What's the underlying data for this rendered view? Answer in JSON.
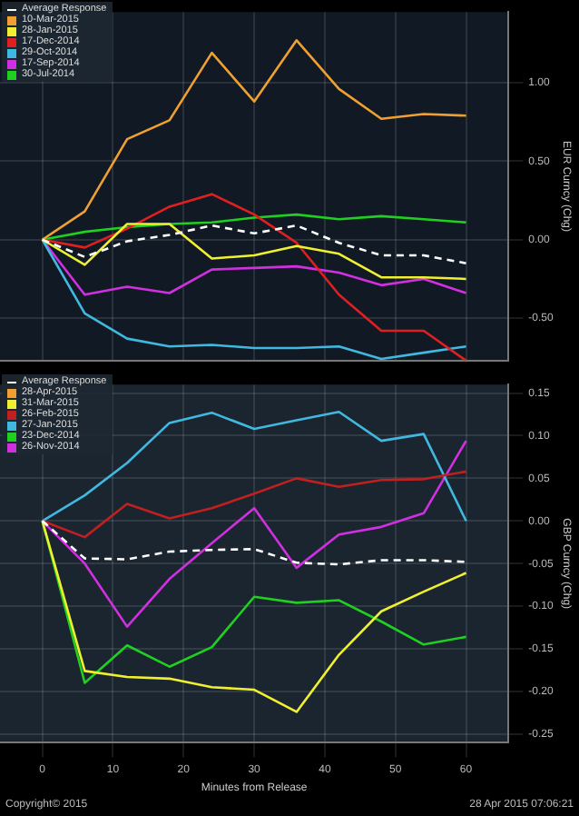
{
  "chart_data": [
    {
      "type": "line",
      "ylabel": "EUR Curncy (Chg)",
      "x": [
        0,
        6,
        12,
        18,
        24,
        30,
        36,
        42,
        48,
        54,
        60
      ],
      "xlim": [
        -6,
        66
      ],
      "xticks": [
        0,
        10,
        20,
        30,
        40,
        50,
        60
      ],
      "ylim": [
        -0.77,
        1.45
      ],
      "yticks": [
        {
          "value": 1,
          "label": "1.00"
        },
        {
          "value": 0.5,
          "label": "0.50"
        },
        {
          "value": 0,
          "label": "0.00"
        },
        {
          "value": -0.5,
          "label": "-0.50"
        }
      ],
      "tick_labels": "y",
      "grid": true,
      "legend": "top left",
      "marker": "none",
      "series": [
        {
          "name": "Average Response",
          "color": "#ffffff",
          "line_style": "dashed",
          "values": [
            0,
            -0.11,
            -0.01,
            0.03,
            0.09,
            0.04,
            0.09,
            -0.02,
            -0.1,
            -0.1,
            -0.15
          ]
        },
        {
          "name": "10-Mar-2015",
          "color": "#f0a030",
          "values": [
            0,
            0.18,
            0.64,
            0.76,
            1.19,
            0.88,
            1.27,
            0.96,
            0.77,
            0.8,
            0.79
          ]
        },
        {
          "name": "28-Jan-2015",
          "color": "#f0f030",
          "values": [
            0,
            -0.16,
            0.1,
            0.1,
            -0.12,
            -0.1,
            -0.04,
            -0.09,
            -0.24,
            -0.24,
            -0.25
          ]
        },
        {
          "name": "17-Dec-2014",
          "color": "#e02020",
          "values": [
            0,
            -0.05,
            0.07,
            0.21,
            0.29,
            0.16,
            -0.02,
            -0.35,
            -0.58,
            -0.58,
            -0.77
          ]
        },
        {
          "name": "29-Oct-2014",
          "color": "#40b8e0",
          "values": [
            0,
            -0.47,
            -0.63,
            -0.68,
            -0.67,
            -0.69,
            -0.69,
            -0.68,
            -0.76,
            -0.72,
            -0.68
          ]
        },
        {
          "name": "17-Sep-2014",
          "color": "#d030e0",
          "values": [
            0,
            -0.35,
            -0.3,
            -0.34,
            -0.19,
            -0.18,
            -0.17,
            -0.21,
            -0.29,
            -0.25,
            -0.34
          ]
        },
        {
          "name": "30-Jul-2014",
          "color": "#20d020",
          "values": [
            0,
            0.05,
            0.08,
            0.1,
            0.11,
            0.14,
            0.16,
            0.13,
            0.15,
            0.13,
            0.11
          ]
        }
      ]
    },
    {
      "type": "line",
      "xlabel": "Minutes from Release",
      "ylabel": "GBP Curncy (Chg)",
      "x": [
        0,
        6,
        12,
        18,
        24,
        30,
        36,
        42,
        48,
        54,
        60
      ],
      "xlim": [
        -6,
        66
      ],
      "xticks": [
        0,
        10,
        20,
        30,
        40,
        50,
        60
      ],
      "ylim": [
        -0.26,
        0.16
      ],
      "yticks": [
        {
          "value": 0.15,
          "label": "0.15"
        },
        {
          "value": 0.1,
          "label": "0.10"
        },
        {
          "value": 0.05,
          "label": "0.05"
        },
        {
          "value": 0,
          "label": "0.00"
        },
        {
          "value": -0.05,
          "label": "-0.05"
        },
        {
          "value": -0.1,
          "label": "-0.10"
        },
        {
          "value": -0.15,
          "label": "-0.15"
        },
        {
          "value": -0.2,
          "label": "-0.20"
        },
        {
          "value": -0.25,
          "label": "-0.25"
        }
      ],
      "grid": true,
      "legend": "top left",
      "marker": "none",
      "annotations": [
        "Copyright© 2015",
        "28 Apr 2015 07:06:21"
      ],
      "series": [
        {
          "name": "Average Response",
          "color": "#ffffff",
          "line_style": "dashed",
          "values": [
            0,
            -0.044,
            -0.045,
            -0.036,
            -0.034,
            -0.033,
            -0.049,
            -0.051,
            -0.046,
            -0.046,
            -0.048
          ]
        },
        {
          "name": "28-Apr-2015",
          "color": "#f0a030",
          "values": [
            null,
            null,
            null,
            null,
            null,
            null,
            null,
            null,
            null,
            null,
            null
          ]
        },
        {
          "name": "31-Mar-2015",
          "color": "#f0f030",
          "values": [
            0,
            -0.176,
            -0.183,
            -0.185,
            -0.195,
            -0.198,
            -0.224,
            -0.157,
            -0.106,
            -0.083,
            -0.061
          ]
        },
        {
          "name": "26-Feb-2015",
          "color": "#c02020",
          "values": [
            0,
            -0.019,
            0.02,
            0.003,
            0.015,
            0.032,
            0.05,
            0.04,
            0.048,
            0.049,
            0.058
          ]
        },
        {
          "name": "27-Jan-2015",
          "color": "#40b8e0",
          "values": [
            0,
            0.03,
            0.068,
            0.115,
            0.127,
            0.108,
            0.118,
            0.128,
            0.094,
            0.102,
            0
          ]
        },
        {
          "name": "23-Dec-2014",
          "color": "#20d020",
          "values": [
            0,
            -0.19,
            -0.146,
            -0.171,
            -0.148,
            -0.089,
            -0.096,
            -0.093,
            -0.118,
            -0.145,
            -0.136
          ]
        },
        {
          "name": "26-Nov-2014",
          "color": "#d030e0",
          "values": [
            0,
            -0.05,
            -0.124,
            -0.068,
            -0.026,
            0.015,
            -0.055,
            -0.016,
            -0.007,
            0.009,
            0.094
          ]
        }
      ]
    }
  ]
}
